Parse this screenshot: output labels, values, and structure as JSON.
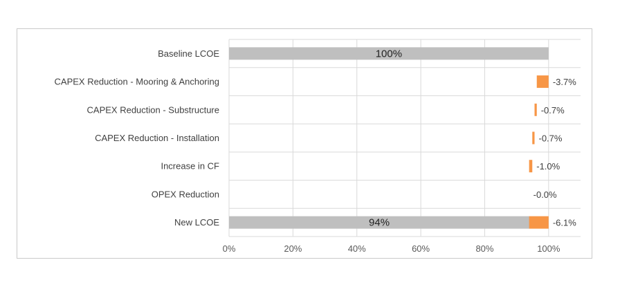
{
  "chart_data": {
    "type": "bar",
    "orientation": "horizontal",
    "subtype": "waterfall",
    "categories": [
      "Baseline LCOE",
      "CAPEX Reduction - Mooring & Anchoring",
      "CAPEX Reduction - Substructure",
      "CAPEX Reduction - Installation",
      "Increase in CF",
      "OPEX Reduction",
      "New LCOE"
    ],
    "series": [
      {
        "values": [
          100,
          null,
          null,
          null,
          null,
          null,
          94
        ],
        "color": "#bfbfbf",
        "bar_labels": [
          "100%",
          "",
          "",
          "",
          "",
          "",
          "94%"
        ]
      },
      {
        "values": [
          null,
          -3.7,
          -0.7,
          -0.7,
          -1.0,
          -0.0,
          -6.1
        ],
        "starts": [
          null,
          100,
          96.3,
          95.6,
          94.9,
          93.9,
          100
        ],
        "color": "#f79646",
        "data_labels": [
          "",
          "-3.7%",
          "-0.7%",
          "-0.7%",
          "-1.0%",
          "-0.0%",
          "-6.1%"
        ]
      }
    ],
    "xlim": [
      0,
      100
    ],
    "xticks": [
      "0%",
      "20%",
      "40%",
      "60%",
      "80%",
      "100%"
    ],
    "grid": true,
    "legend": "none"
  }
}
